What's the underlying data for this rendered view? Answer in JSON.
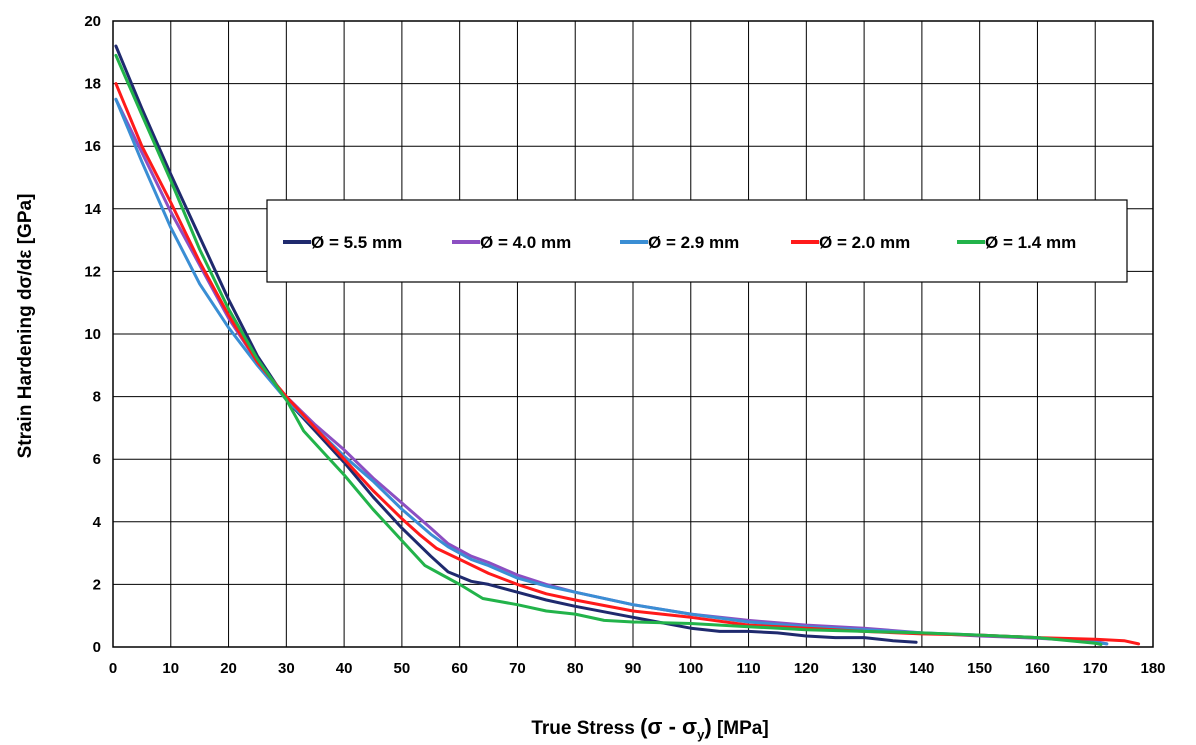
{
  "chart_data": {
    "type": "line",
    "title": "",
    "xlabel": {
      "prefix": "True Stress ",
      "open": "(",
      "sigma": "σ",
      "minus": " - ",
      "sigma_y": "σ",
      "sub": "y",
      "close": ")",
      "unit": " [MPa]"
    },
    "ylabel": "Strain Hardening dσ/dε [GPa]",
    "xlim": [
      0,
      180
    ],
    "ylim": [
      0,
      20
    ],
    "xticks": [
      "0",
      "10",
      "20",
      "30",
      "40",
      "50",
      "60",
      "70",
      "80",
      "90",
      "100",
      "110",
      "120",
      "130",
      "140",
      "150",
      "160",
      "170",
      "180"
    ],
    "yticks": [
      "0",
      "2",
      "4",
      "6",
      "8",
      "10",
      "12",
      "14",
      "16",
      "18",
      "20"
    ],
    "grid": true,
    "legend_position": "upper-center",
    "series": [
      {
        "name": "Ø = 5.5 mm",
        "color": "#1f2a6e",
        "points": [
          [
            0.5,
            19.2
          ],
          [
            5,
            17.2
          ],
          [
            10,
            15.1
          ],
          [
            15,
            13.1
          ],
          [
            20,
            11.1
          ],
          [
            25,
            9.3
          ],
          [
            30,
            7.9
          ],
          [
            35,
            6.9
          ],
          [
            40,
            5.9
          ],
          [
            45,
            4.8
          ],
          [
            50,
            3.8
          ],
          [
            55,
            2.9
          ],
          [
            58,
            2.4
          ],
          [
            62,
            2.1
          ],
          [
            65,
            2.0
          ],
          [
            70,
            1.75
          ],
          [
            75,
            1.5
          ],
          [
            80,
            1.3
          ],
          [
            90,
            0.95
          ],
          [
            100,
            0.6
          ],
          [
            105,
            0.5
          ],
          [
            110,
            0.5
          ],
          [
            115,
            0.45
          ],
          [
            120,
            0.35
          ],
          [
            125,
            0.3
          ],
          [
            130,
            0.3
          ],
          [
            135,
            0.2
          ],
          [
            139,
            0.15
          ]
        ]
      },
      {
        "name": "Ø = 4.0 mm",
        "color": "#8c4fc2",
        "points": [
          [
            0.5,
            17.5
          ],
          [
            5,
            15.8
          ],
          [
            10,
            13.9
          ],
          [
            15,
            12.2
          ],
          [
            20,
            10.5
          ],
          [
            25,
            9.1
          ],
          [
            30,
            8.0
          ],
          [
            35,
            7.1
          ],
          [
            40,
            6.3
          ],
          [
            45,
            5.4
          ],
          [
            50,
            4.6
          ],
          [
            55,
            3.8
          ],
          [
            58,
            3.3
          ],
          [
            62,
            2.9
          ],
          [
            65,
            2.7
          ],
          [
            70,
            2.3
          ],
          [
            75,
            2.0
          ],
          [
            80,
            1.75
          ],
          [
            90,
            1.35
          ],
          [
            100,
            1.05
          ],
          [
            110,
            0.85
          ],
          [
            120,
            0.7
          ],
          [
            130,
            0.6
          ],
          [
            140,
            0.45
          ],
          [
            150,
            0.35
          ],
          [
            160,
            0.28
          ],
          [
            170,
            0.18
          ],
          [
            172,
            0.1
          ]
        ]
      },
      {
        "name": "Ø = 2.9 mm",
        "color": "#3a8ed4",
        "points": [
          [
            0.5,
            17.5
          ],
          [
            5,
            15.5
          ],
          [
            10,
            13.4
          ],
          [
            15,
            11.6
          ],
          [
            20,
            10.2
          ],
          [
            25,
            9.0
          ],
          [
            30,
            7.9
          ],
          [
            35,
            7.0
          ],
          [
            40,
            6.1
          ],
          [
            45,
            5.3
          ],
          [
            50,
            4.4
          ],
          [
            55,
            3.6
          ],
          [
            58,
            3.2
          ],
          [
            62,
            2.8
          ],
          [
            65,
            2.6
          ],
          [
            70,
            2.2
          ],
          [
            75,
            1.95
          ],
          [
            80,
            1.75
          ],
          [
            90,
            1.35
          ],
          [
            100,
            1.05
          ],
          [
            110,
            0.8
          ],
          [
            120,
            0.65
          ],
          [
            130,
            0.55
          ],
          [
            140,
            0.45
          ],
          [
            150,
            0.38
          ],
          [
            160,
            0.3
          ],
          [
            170,
            0.15
          ],
          [
            172,
            0.1
          ]
        ]
      },
      {
        "name": "Ø = 2.0 mm",
        "color": "#ff1a1a",
        "points": [
          [
            0.5,
            18.0
          ],
          [
            5,
            16.0
          ],
          [
            10,
            14.2
          ],
          [
            15,
            12.3
          ],
          [
            20,
            10.6
          ],
          [
            25,
            9.1
          ],
          [
            30,
            8.0
          ],
          [
            35,
            7.0
          ],
          [
            40,
            6.0
          ],
          [
            45,
            5.0
          ],
          [
            50,
            4.1
          ],
          [
            53,
            3.6
          ],
          [
            56,
            3.15
          ],
          [
            60,
            2.8
          ],
          [
            65,
            2.35
          ],
          [
            70,
            2.0
          ],
          [
            75,
            1.7
          ],
          [
            80,
            1.5
          ],
          [
            90,
            1.15
          ],
          [
            100,
            0.95
          ],
          [
            110,
            0.7
          ],
          [
            120,
            0.6
          ],
          [
            130,
            0.5
          ],
          [
            140,
            0.42
          ],
          [
            150,
            0.38
          ],
          [
            160,
            0.3
          ],
          [
            170,
            0.25
          ],
          [
            175,
            0.2
          ],
          [
            177.5,
            0.1
          ]
        ]
      },
      {
        "name": "Ø = 1.4 mm",
        "color": "#22b34a",
        "points": [
          [
            0.5,
            18.9
          ],
          [
            5,
            17.0
          ],
          [
            10,
            14.9
          ],
          [
            15,
            12.7
          ],
          [
            20,
            10.8
          ],
          [
            25,
            9.2
          ],
          [
            30,
            7.9
          ],
          [
            33,
            6.9
          ],
          [
            37,
            6.1
          ],
          [
            40,
            5.5
          ],
          [
            45,
            4.4
          ],
          [
            50,
            3.4
          ],
          [
            54,
            2.6
          ],
          [
            57,
            2.3
          ],
          [
            60,
            2.0
          ],
          [
            64,
            1.55
          ],
          [
            70,
            1.35
          ],
          [
            75,
            1.15
          ],
          [
            80,
            1.05
          ],
          [
            85,
            0.85
          ],
          [
            90,
            0.8
          ],
          [
            100,
            0.75
          ],
          [
            110,
            0.65
          ],
          [
            120,
            0.55
          ],
          [
            130,
            0.5
          ],
          [
            140,
            0.45
          ],
          [
            150,
            0.38
          ],
          [
            160,
            0.3
          ],
          [
            170,
            0.12
          ],
          [
            171,
            0.08
          ]
        ]
      }
    ]
  }
}
